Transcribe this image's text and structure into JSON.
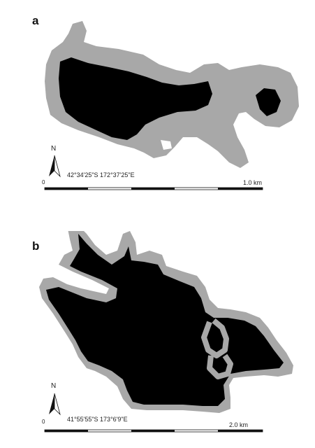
{
  "panels": [
    {
      "label": "a",
      "coordinates": "42°34'25\"S 172°37'25\"E",
      "scale_label": "1.0 km",
      "north_label": "N",
      "origin_label": "0"
    },
    {
      "label": "b",
      "coordinates": "41°55'55\"S 173°6'9\"E",
      "scale_label": "2.0 km",
      "north_label": "N",
      "origin_label": "0"
    }
  ],
  "colors": {
    "habitat_core": "#000000",
    "buffer": "#a8a8a8",
    "scale_bar": "#111111"
  }
}
